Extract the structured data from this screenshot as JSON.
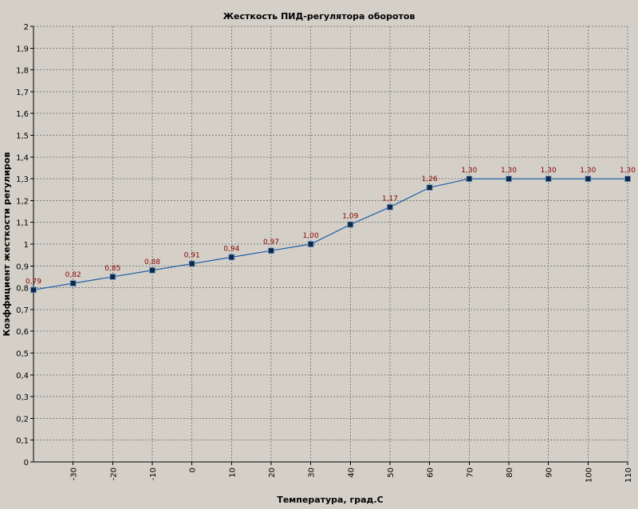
{
  "chart_data": {
    "type": "line",
    "title": "Жесткость ПИД-регулятора оборотов",
    "xlabel": "Температура, град.С",
    "ylabel": "Коэффициент жесткости регулиров",
    "xlim": [
      -40,
      110
    ],
    "ylim": [
      0,
      2
    ],
    "x_ticks": [
      -30,
      -20,
      -10,
      0,
      10,
      20,
      30,
      40,
      50,
      60,
      70,
      80,
      90,
      100,
      110
    ],
    "x_tick_labels": [
      "-30",
      "-20",
      "-10",
      "0",
      "10",
      "20",
      "30",
      "40",
      "50",
      "60",
      "70",
      "80",
      "90",
      "100",
      "110"
    ],
    "y_ticks": [
      0,
      0.1,
      0.2,
      0.3,
      0.4,
      0.5,
      0.6,
      0.7,
      0.8,
      0.9,
      1,
      1.1,
      1.2,
      1.3,
      1.4,
      1.5,
      1.6,
      1.7,
      1.8,
      1.9,
      2
    ],
    "y_tick_labels": [
      "0",
      "0,1",
      "0,2",
      "0,3",
      "0,4",
      "0,5",
      "0,6",
      "0,7",
      "0,8",
      "0,9",
      "1",
      "1,1",
      "1,2",
      "1,3",
      "1,4",
      "1,5",
      "1,6",
      "1,7",
      "1,8",
      "1,9",
      "2"
    ],
    "grid": true,
    "series": [
      {
        "x": [
          -40,
          -30,
          -20,
          -10,
          0,
          10,
          20,
          30,
          40,
          50,
          60,
          70,
          80,
          90,
          100,
          110
        ],
        "y": [
          0.79,
          0.82,
          0.85,
          0.88,
          0.91,
          0.94,
          0.97,
          1.0,
          1.09,
          1.17,
          1.26,
          1.3,
          1.3,
          1.3,
          1.3,
          1.3
        ],
        "labels": [
          "0,79",
          "0,82",
          "0,85",
          "0,88",
          "0,91",
          "0,94",
          "0,97",
          "1,00",
          "1,09",
          "1,17",
          "1,26",
          "1,30",
          "1,30",
          "1,30",
          "1,30",
          "1,30"
        ]
      }
    ]
  },
  "colors": {
    "background": "#d4d0c8",
    "line": "#1f5fa8",
    "marker_fill": "#0e2a4a",
    "marker_stroke": "#7a9ccc",
    "data_label": "#8b0000",
    "grid": "#7f7f7f",
    "axis": "#000000"
  }
}
